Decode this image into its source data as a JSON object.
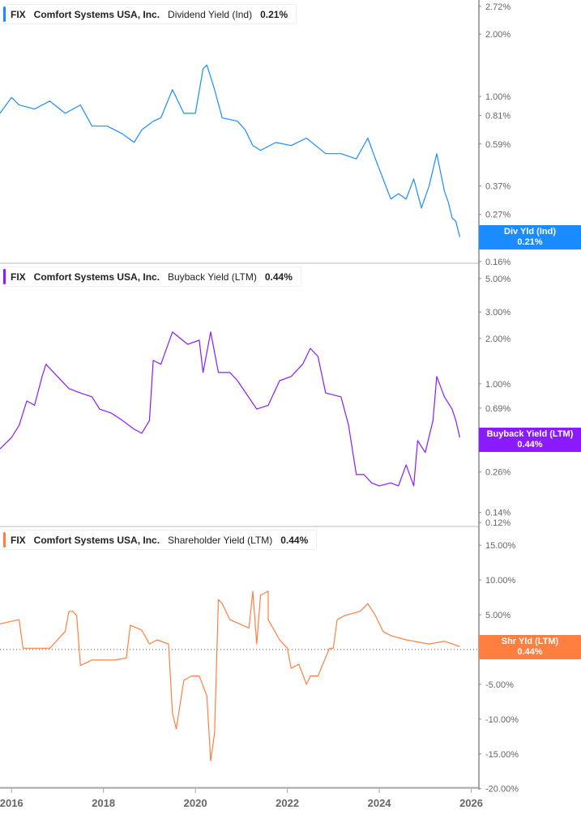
{
  "chart_data": [
    {
      "type": "line",
      "ticker": "FIX",
      "company": "Comfort Systems USA, Inc.",
      "metric": "Dividend Yield (Ind)",
      "last_value": "0.21%",
      "tag_label": "Div Yld (Ind)",
      "color": "#1a8cff",
      "scale": "log",
      "ylim": [
        0.157,
        2.92
      ],
      "yticks": [
        2.72,
        2.0,
        1.0,
        0.81,
        0.59,
        0.37,
        0.27,
        0.16
      ],
      "ytick_labels": [
        "2.72%",
        "2.00%",
        "1.00%",
        "0.81%",
        "0.59%",
        "0.37%",
        "0.27%",
        "0.16%"
      ],
      "x": [
        "2015-10",
        "2016-01",
        "2016-03",
        "2016-07",
        "2016-11",
        "2017-03",
        "2017-07",
        "2017-10",
        "2018-02",
        "2018-06",
        "2018-09",
        "2018-11",
        "2019-02",
        "2019-04",
        "2019-07",
        "2019-10",
        "2020-01",
        "2020-03",
        "2020-04",
        "2020-06",
        "2020-08",
        "2020-12",
        "2021-02",
        "2021-04",
        "2021-06",
        "2021-10",
        "2022-02",
        "2022-06",
        "2022-11",
        "2023-03",
        "2023-07",
        "2023-10",
        "2023-12",
        "2024-02",
        "2024-04",
        "2024-06",
        "2024-08",
        "2024-10",
        "2024-12",
        "2025-02",
        "2025-04",
        "2025-06",
        "2025-07",
        "2025-08",
        "2025-09",
        "2025-10"
      ],
      "y": [
        0.83,
        0.99,
        0.91,
        0.87,
        0.95,
        0.83,
        0.91,
        0.72,
        0.72,
        0.66,
        0.6,
        0.69,
        0.76,
        0.79,
        1.08,
        0.83,
        0.83,
        1.36,
        1.42,
        1.08,
        0.79,
        0.76,
        0.69,
        0.58,
        0.55,
        0.6,
        0.58,
        0.63,
        0.53,
        0.53,
        0.5,
        0.63,
        0.5,
        0.4,
        0.32,
        0.34,
        0.32,
        0.4,
        0.29,
        0.37,
        0.53,
        0.35,
        0.31,
        0.26,
        0.25,
        0.21
      ]
    },
    {
      "type": "line",
      "ticker": "FIX",
      "company": "Comfort Systems USA, Inc.",
      "metric": "Buyback Yield (LTM)",
      "last_value": "0.44%",
      "tag_label": "Buyback Yield (LTM)",
      "color": "#8a1aff",
      "scale": "log",
      "ylim": [
        0.113,
        6.32
      ],
      "yticks": [
        5.0,
        3.0,
        2.0,
        1.0,
        0.69,
        0.37,
        0.26,
        0.14,
        0.12
      ],
      "ytick_labels": [
        "5.00%",
        "3.00%",
        "2.00%",
        "1.00%",
        "0.69%",
        "0.37%",
        "0.26%",
        "0.14%",
        "0.12%"
      ],
      "x": [
        "2015-10",
        "2016-01",
        "2016-03",
        "2016-05",
        "2016-07",
        "2016-09",
        "2016-10",
        "2017-01",
        "2017-04",
        "2017-07",
        "2017-10",
        "2017-12",
        "2018-03",
        "2018-06",
        "2018-09",
        "2018-11",
        "2019-01",
        "2019-02",
        "2019-04",
        "2019-07",
        "2019-11",
        "2020-02",
        "2020-03",
        "2020-05",
        "2020-07",
        "2020-10",
        "2020-12",
        "2021-05",
        "2021-08",
        "2021-11",
        "2022-02",
        "2022-05",
        "2022-07",
        "2022-09",
        "2022-11",
        "2023-03",
        "2023-05",
        "2023-07",
        "2023-09",
        "2023-11",
        "2024-01",
        "2024-04",
        "2024-06",
        "2024-08",
        "2024-10",
        "2024-11",
        "2025-01",
        "2025-03",
        "2025-04",
        "2025-06",
        "2025-08",
        "2025-09",
        "2025-10"
      ],
      "y": [
        0.37,
        0.44,
        0.53,
        0.77,
        0.72,
        1.12,
        1.35,
        1.12,
        0.93,
        0.87,
        0.82,
        0.68,
        0.64,
        0.57,
        0.5,
        0.47,
        0.57,
        1.43,
        1.35,
        2.21,
        1.83,
        1.95,
        1.19,
        2.21,
        1.19,
        1.19,
        1.05,
        0.68,
        0.72,
        1.05,
        1.12,
        1.35,
        1.72,
        1.52,
        0.87,
        0.82,
        0.53,
        0.25,
        0.25,
        0.22,
        0.21,
        0.22,
        0.21,
        0.29,
        0.21,
        0.42,
        0.35,
        0.57,
        1.12,
        0.82,
        0.68,
        0.57,
        0.44
      ]
    },
    {
      "type": "line",
      "ticker": "FIX",
      "company": "Comfort Systems USA, Inc.",
      "metric": "Shareholder Yield (LTM)",
      "last_value": "0.44%",
      "tag_label": "Shr Yld (LTM)",
      "color": "#ff7f40",
      "scale": "linear",
      "ylim": [
        -19.8,
        17.7
      ],
      "zero_line": true,
      "yticks": [
        15,
        10,
        5,
        0,
        -5,
        -10,
        -15,
        -20
      ],
      "ytick_labels": [
        "15.00%",
        "10.00%",
        "5.00%",
        "0.00%",
        "-5.00%",
        "-10.00%",
        "-15.00%",
        "-20.00%"
      ],
      "x": [
        "2015-10",
        "2016-03",
        "2016-04",
        "2016-11",
        "2016-12",
        "2017-03",
        "2017-04",
        "2017-05",
        "2017-06",
        "2017-07",
        "2017-10",
        "2017-12",
        "2018-04",
        "2018-07",
        "2018-08",
        "2018-11",
        "2019-01",
        "2019-03",
        "2019-06",
        "2019-07",
        "2019-08",
        "2019-10",
        "2019-12",
        "2020-02",
        "2020-04",
        "2020-05",
        "2020-06",
        "2020-07",
        "2020-08",
        "2020-10",
        "2021-03",
        "2021-04",
        "2021-05",
        "2021-06",
        "2021-08",
        "2021-08",
        "2021-11",
        "2022-01",
        "2022-02",
        "2022-04",
        "2022-06",
        "2022-07",
        "2022-09",
        "2022-12",
        "2023-01",
        "2023-02",
        "2023-04",
        "2023-08",
        "2023-10",
        "2023-12",
        "2024-02",
        "2024-04",
        "2024-08",
        "2025-02",
        "2025-06",
        "2025-10"
      ],
      "y": [
        3.7,
        4.3,
        0.2,
        0.2,
        0.8,
        2.6,
        5.5,
        5.5,
        4.9,
        -2.3,
        -1.5,
        -1.5,
        -1.5,
        -1.2,
        3.5,
        2.8,
        0.8,
        1.4,
        0.8,
        -9.1,
        -11.4,
        -4.4,
        -3.8,
        -3.8,
        -6.7,
        -16.0,
        -12.0,
        7.2,
        6.6,
        4.3,
        3.1,
        8.4,
        0.8,
        7.8,
        8.4,
        4.3,
        1.4,
        0.2,
        -2.7,
        -2.1,
        -5.0,
        -3.8,
        -3.8,
        0.2,
        0.2,
        4.3,
        4.9,
        5.5,
        6.6,
        4.9,
        2.6,
        2.0,
        1.4,
        0.8,
        1.2,
        0.44
      ]
    }
  ],
  "x_axis": {
    "range": [
      "2015-10",
      "2026-03"
    ],
    "ticks": [
      "2016-01",
      "2018-01",
      "2020-01",
      "2022-01",
      "2024-01",
      "2026-01"
    ],
    "tick_labels": [
      "2016",
      "2018",
      "2020",
      "2022",
      "2024",
      "2026"
    ]
  }
}
